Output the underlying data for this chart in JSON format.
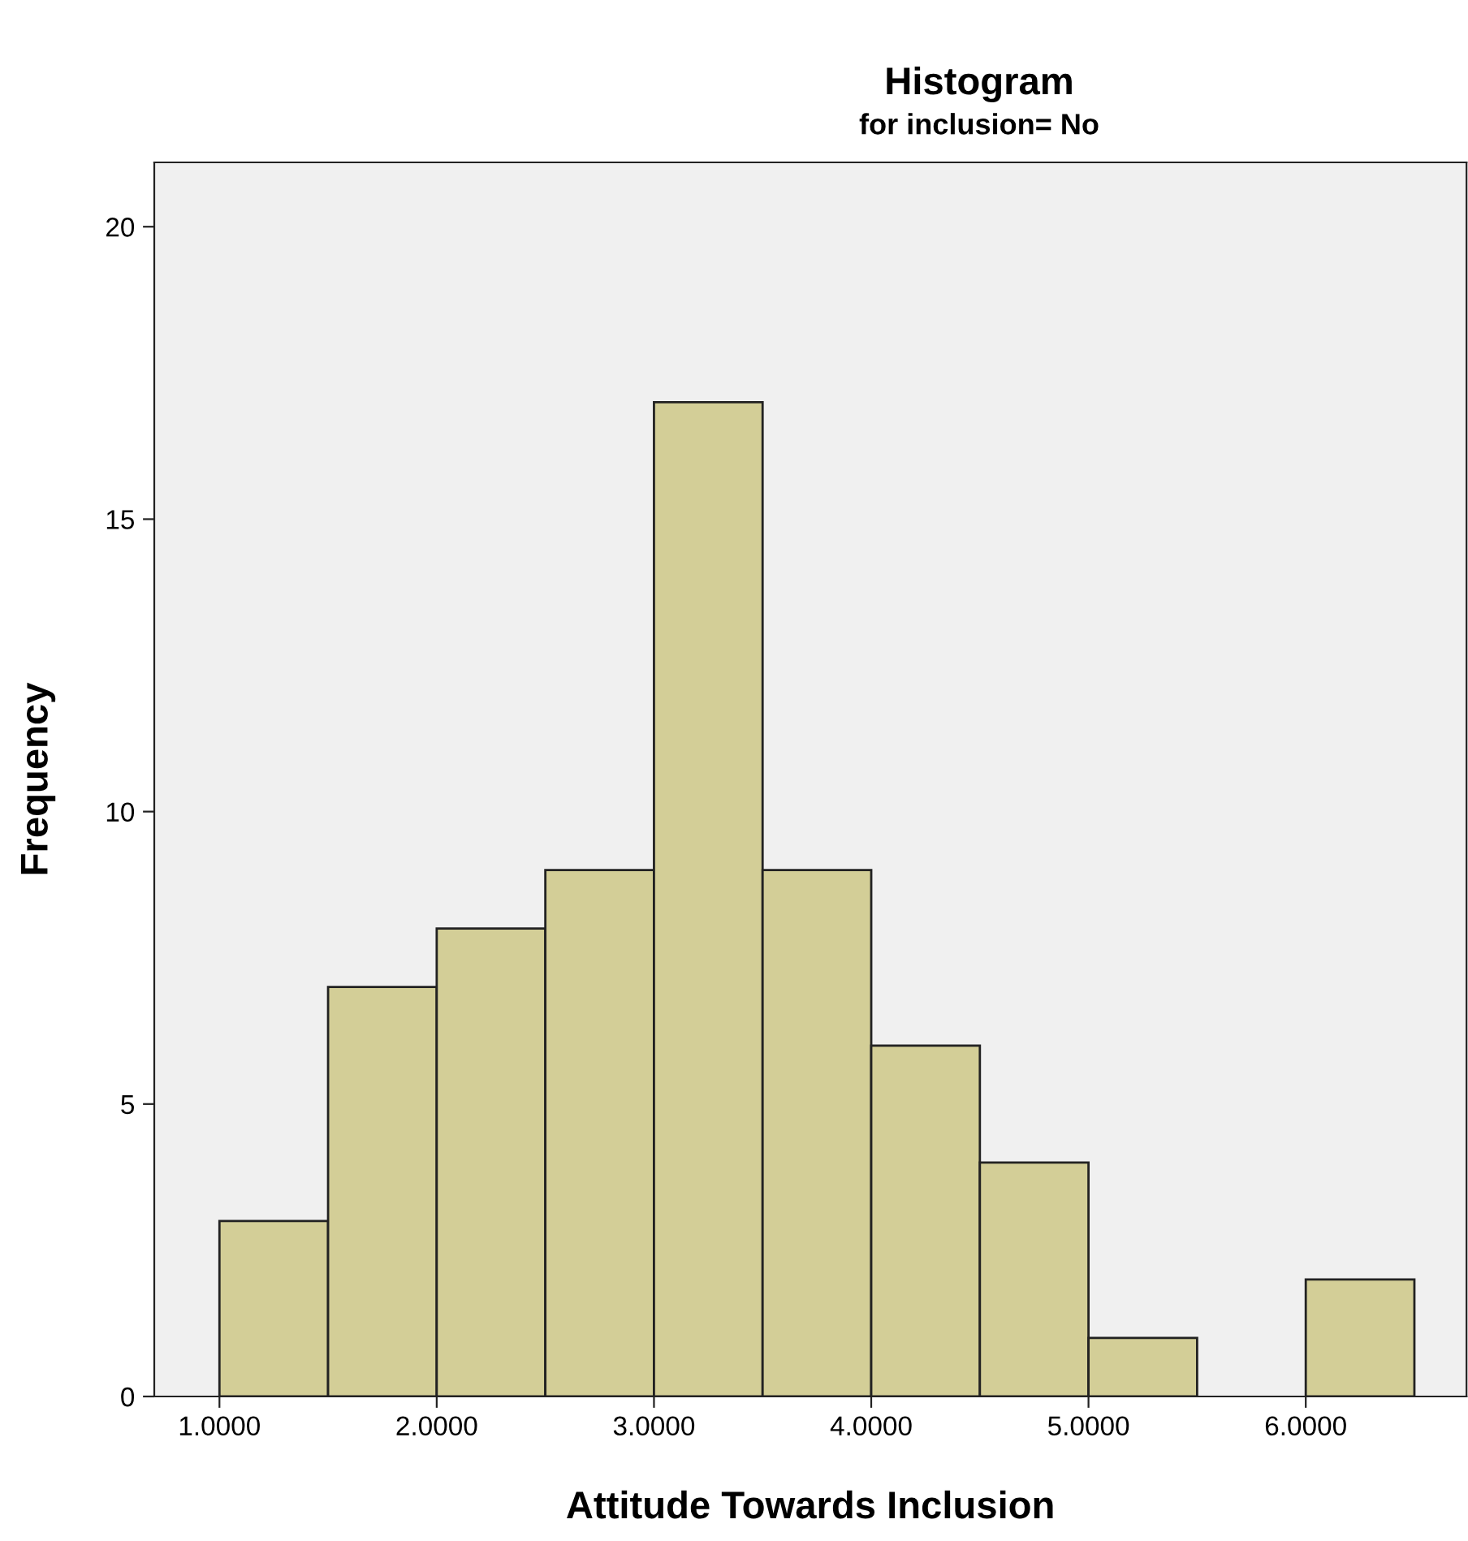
{
  "chart_data": {
    "type": "histogram",
    "title": "Histogram",
    "subtitle": "for inclusion= No",
    "xlabel": "Attitude Towards Inclusion",
    "ylabel": "Frequency",
    "bins": [
      1.0,
      1.5,
      2.0,
      2.5,
      3.0,
      3.5,
      4.0,
      4.5,
      5.0,
      5.5,
      6.0,
      6.5
    ],
    "values": [
      3,
      7,
      8,
      9,
      17,
      9,
      6,
      4,
      1,
      0,
      2
    ],
    "color": "#d3ce97",
    "xlim": [
      0.7,
      6.74
    ],
    "ylim": [
      0,
      21.1
    ],
    "xticks": [
      {
        "value": 1,
        "label": "1.0000"
      },
      {
        "value": 2,
        "label": "2.0000"
      },
      {
        "value": 3,
        "label": "3.0000"
      },
      {
        "value": 4,
        "label": "4.0000"
      },
      {
        "value": 5,
        "label": "5.0000"
      },
      {
        "value": 6,
        "label": "6.0000"
      }
    ],
    "yticks": [
      0,
      5,
      10,
      15,
      20
    ],
    "grid": false
  }
}
